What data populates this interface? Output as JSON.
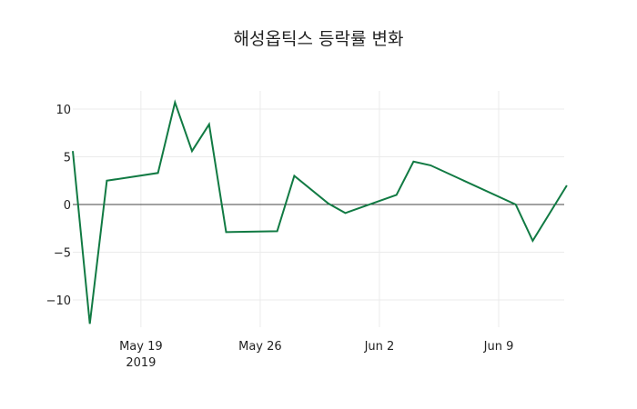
{
  "chart_data": {
    "type": "line",
    "title": "해성옵틱스 등락률 변화",
    "xlabel": "",
    "ylabel": "",
    "x": [
      "2019-05-15",
      "2019-05-16",
      "2019-05-17",
      "2019-05-20",
      "2019-05-21",
      "2019-05-22",
      "2019-05-23",
      "2019-05-24",
      "2019-05-27",
      "2019-05-28",
      "2019-05-30",
      "2019-05-31",
      "2019-06-03",
      "2019-06-04",
      "2019-06-05",
      "2019-06-10",
      "2019-06-11",
      "2019-06-13"
    ],
    "series": [
      {
        "name": "등락률",
        "color": "#117a43",
        "values": [
          5.6,
          -12.5,
          2.5,
          3.3,
          10.7,
          5.6,
          8.4,
          -2.9,
          -2.8,
          3.0,
          0.1,
          -0.9,
          1.0,
          4.5,
          4.1,
          0.0,
          -3.8,
          2.0
        ]
      }
    ],
    "ylim": [
      -12.5,
      12
    ],
    "yticks": [
      10,
      5,
      0,
      -5,
      -10
    ],
    "ytick_labels": [
      "10",
      "5",
      "0",
      "−5",
      "−10"
    ],
    "xticks": [
      "May 19",
      "May 26",
      "Jun 2",
      "Jun 9"
    ],
    "xtick_year": "2019",
    "grid": true,
    "legend": null
  }
}
